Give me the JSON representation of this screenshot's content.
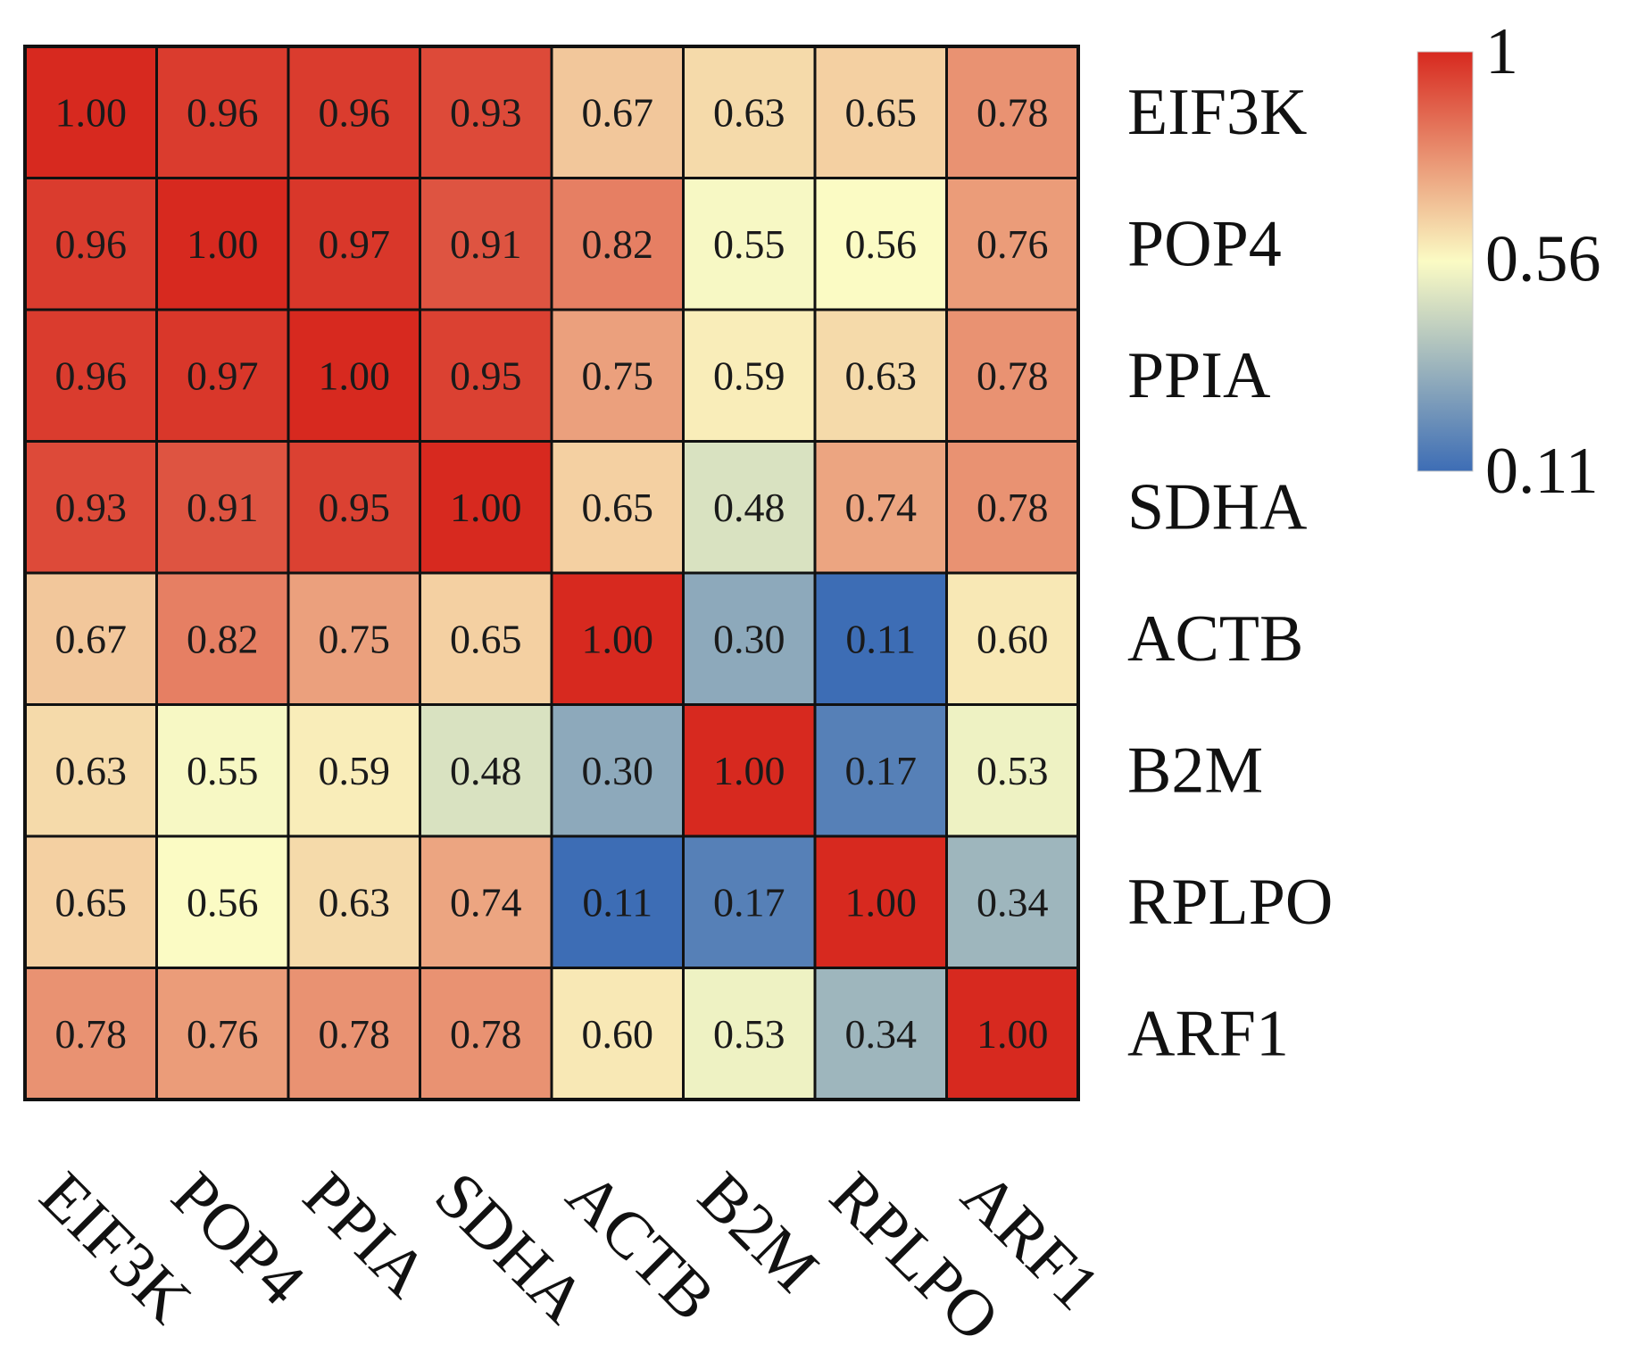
{
  "chart_data": {
    "type": "heatmap",
    "rows": [
      "EIF3K",
      "POP4",
      "PPIA",
      "SDHA",
      "ACTB",
      "B2M",
      "RPLPO",
      "ARF1"
    ],
    "columns": [
      "EIF3K",
      "POP4",
      "PPIA",
      "SDHA",
      "ACTB",
      "B2M",
      "RPLPO",
      "ARF1"
    ],
    "values": [
      [
        1.0,
        0.96,
        0.96,
        0.93,
        0.67,
        0.63,
        0.65,
        0.78
      ],
      [
        0.96,
        1.0,
        0.97,
        0.91,
        0.82,
        0.55,
        0.56,
        0.76
      ],
      [
        0.96,
        0.97,
        1.0,
        0.95,
        0.75,
        0.59,
        0.63,
        0.78
      ],
      [
        0.93,
        0.91,
        0.95,
        1.0,
        0.65,
        0.48,
        0.74,
        0.78
      ],
      [
        0.67,
        0.82,
        0.75,
        0.65,
        1.0,
        0.3,
        0.11,
        0.6
      ],
      [
        0.63,
        0.55,
        0.59,
        0.48,
        0.3,
        1.0,
        0.17,
        0.53
      ],
      [
        0.65,
        0.56,
        0.63,
        0.74,
        0.11,
        0.17,
        1.0,
        0.34
      ],
      [
        0.78,
        0.76,
        0.78,
        0.78,
        0.6,
        0.53,
        0.34,
        1.0
      ]
    ],
    "value_format": "0.00",
    "colorscale": {
      "min": 0.11,
      "mid": 0.56,
      "max": 1,
      "colors": [
        "#3d6db5",
        "#fbfbc4",
        "#d7291f"
      ],
      "tick_labels": [
        "1",
        "0.56",
        "0.11"
      ],
      "tick_values": [
        1,
        0.56,
        0.11
      ]
    },
    "legend_position": "top-right",
    "row_label_position": "right",
    "column_label_position": "bottom-rotated",
    "grid": true
  }
}
